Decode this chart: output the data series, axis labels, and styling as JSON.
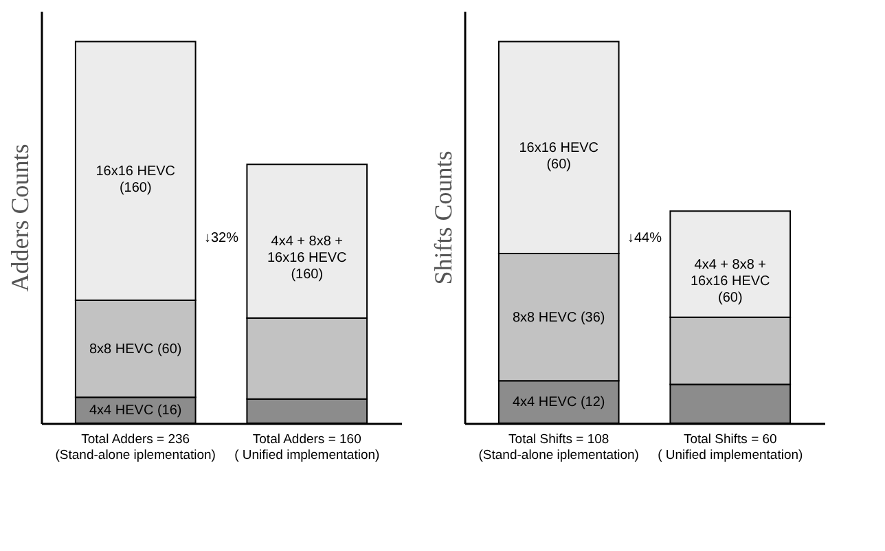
{
  "chart_data": [
    {
      "type": "bar",
      "stacked": true,
      "ylabel": "Adders Counts",
      "tick_labels": "x",
      "legend": false,
      "categories": [
        "Total Adders = 236\n(Stand-alone iplementation)",
        "Total Adders = 160\n( Unified implementation)"
      ],
      "annotations": [
        "↓32%"
      ],
      "series": [
        {
          "color": "#8c8c8c",
          "values": [
            16,
            15
          ],
          "value_labels": [
            "4x4 HEVC (16)",
            null
          ]
        },
        {
          "color": "#c2c2c2",
          "values": [
            60,
            50
          ],
          "value_labels": [
            "8x8 HEVC (60)",
            null
          ]
        },
        {
          "color": "#ececec",
          "values": [
            160,
            95
          ],
          "value_labels": [
            "16x16 HEVC\n(160)",
            null
          ]
        }
      ],
      "totals": [
        null,
        "4x4 + 8x8 +\n16x16 HEVC\n(160)"
      ]
    },
    {
      "type": "bar",
      "stacked": true,
      "ylabel": "Shifts Counts",
      "tick_labels": "x",
      "legend": false,
      "categories": [
        "Total Shifts = 108\n(Stand-alone iplementation)",
        "Total Shifts = 60\n( Unified implementation)"
      ],
      "annotations": [
        "↓44%"
      ],
      "series": [
        {
          "color": "#8c8c8c",
          "values": [
            12,
            11
          ],
          "value_labels": [
            "4x4 HEVC (12)",
            null
          ]
        },
        {
          "color": "#c2c2c2",
          "values": [
            36,
            19
          ],
          "value_labels": [
            "8x8 HEVC (36)",
            null
          ]
        },
        {
          "color": "#ececec",
          "values": [
            60,
            30
          ],
          "value_labels": [
            "16x16 HEVC\n(60)",
            null
          ]
        }
      ],
      "totals": [
        null,
        "4x4 + 8x8 +\n16x16 HEVC\n(60)"
      ]
    }
  ]
}
